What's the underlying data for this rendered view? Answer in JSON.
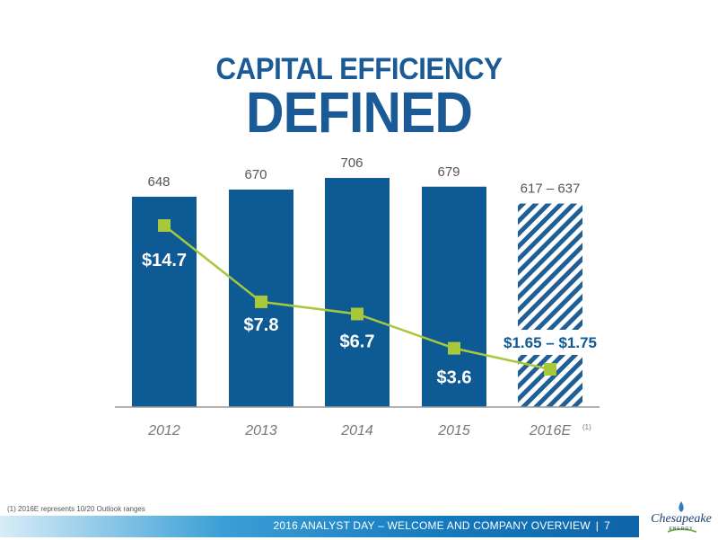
{
  "title": {
    "line1": "CAPITAL EFFICIENCY",
    "line2": "DEFINED"
  },
  "chart_data": {
    "type": "bar",
    "categories": [
      "2012",
      "2013",
      "2014",
      "2015",
      "2016E"
    ],
    "category_notes": [
      "",
      "",
      "",
      "",
      "(1)"
    ],
    "bar_values": [
      648,
      670,
      706,
      679,
      627
    ],
    "bar_labels": [
      "648",
      "670",
      "706",
      "679",
      "617 – 637"
    ],
    "bar_range_last": [
      617,
      637
    ],
    "bar_last_hatched": true,
    "line_series": {
      "values": [
        14.7,
        7.8,
        6.7,
        3.6,
        1.7
      ],
      "labels": [
        "$14.7",
        "$7.8",
        "$6.7",
        "$3.6",
        "$1.65 – $1.75"
      ],
      "range_last": [
        1.65,
        1.75
      ]
    },
    "colors": {
      "bar": "#0e5a94",
      "line": "#a8c83c",
      "marker": "#a8c83c",
      "axis": "#999999",
      "hatch": "#0e5a94"
    }
  },
  "footnote": "(1)  2016E represents 10/20 Outlook ranges",
  "footer": {
    "text": "2016 ANALYST DAY – WELCOME AND COMPANY OVERVIEW",
    "separator": "|",
    "page": "7"
  },
  "logo": {
    "text": "Chesapeake",
    "sub": "ENERGY"
  }
}
